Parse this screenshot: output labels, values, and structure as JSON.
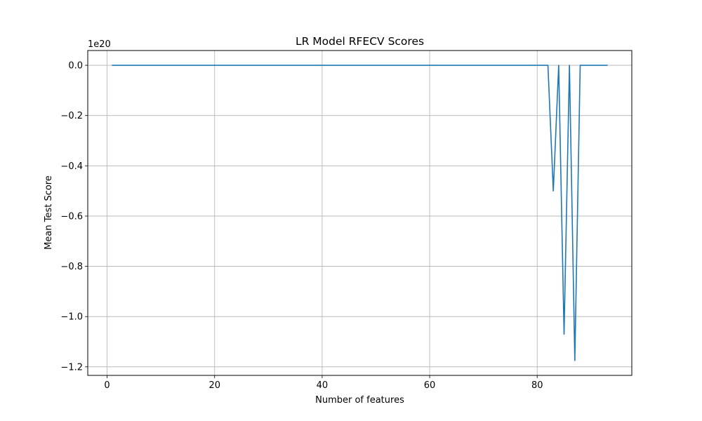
{
  "chart_data": {
    "type": "line",
    "title": "LR Model RFECV Scores",
    "xlabel": "Number of features",
    "ylabel": "Mean Test Score",
    "y_offset_label": "1e20",
    "y_scale_factor": 1e+20,
    "xlim": [
      -3.6,
      97.6
    ],
    "ylim": [
      -1.234,
      0.0588
    ],
    "xticks": [
      0,
      20,
      40,
      60,
      80
    ],
    "yticks": [
      0.0,
      -0.2,
      -0.4,
      -0.6,
      -0.8,
      -1.0,
      -1.2
    ],
    "ytick_labels": [
      "0.0",
      "−0.2",
      "−0.4",
      "−0.6",
      "−0.8",
      "−1.0",
      "−1.2"
    ],
    "grid": true,
    "series": [
      {
        "color": "#1f77b4",
        "x": [
          1,
          82,
          83,
          84,
          85,
          86,
          87,
          88,
          93
        ],
        "y": [
          0,
          0,
          -0.5,
          0,
          -1.07,
          0,
          -1.175,
          0,
          0
        ]
      }
    ]
  }
}
